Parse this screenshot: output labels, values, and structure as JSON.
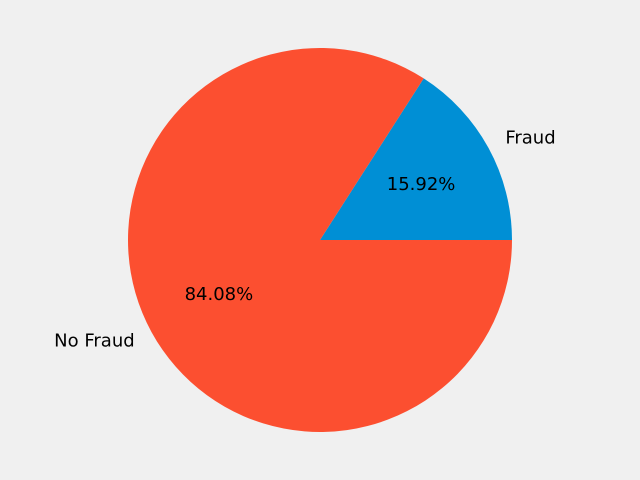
{
  "chart_data": {
    "type": "pie",
    "slices": [
      {
        "label": "Fraud",
        "value": 15.92,
        "pct_label": "15.92%",
        "color": "#008fd5"
      },
      {
        "label": "No Fraud",
        "value": 84.08,
        "pct_label": "84.08%",
        "color": "#fc4f30"
      }
    ],
    "start_angle": 0,
    "direction": "counterclockwise",
    "background": "#f0f0f0"
  }
}
